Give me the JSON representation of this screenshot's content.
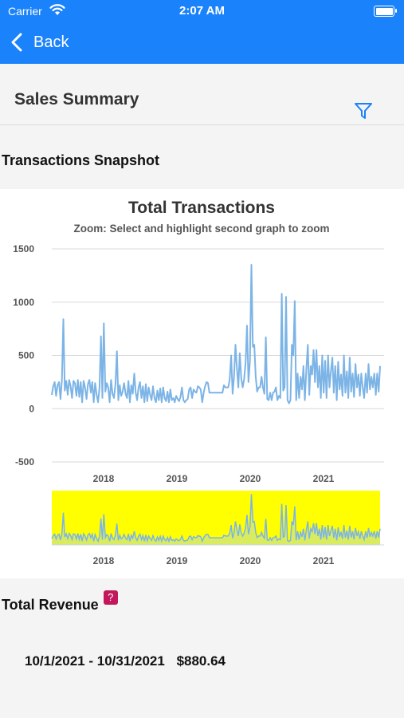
{
  "status_bar": {
    "carrier": "Carrier",
    "time": "2:07 AM"
  },
  "nav": {
    "back_label": "Back"
  },
  "header": {
    "title": "Sales Summary"
  },
  "sections": {
    "snapshot_title": "Transactions Snapshot",
    "revenue_title": "Total Revenue"
  },
  "chart_data": {
    "type": "line",
    "title": "Total Transactions",
    "subtitle": "Zoom: Select and highlight second graph to zoom",
    "ylabel": "",
    "xlabel": "",
    "ylim": [
      -500,
      1500
    ],
    "yticks": [
      1500,
      1000,
      500,
      0,
      -500
    ],
    "xticks": [
      "2018",
      "2019",
      "2020",
      "2021"
    ],
    "grid": true,
    "series_color": "#7cb4e6",
    "navigator_color": "#ffff00",
    "series": [
      {
        "values": [
          130,
          210,
          250,
          120,
          220,
          250,
          90,
          270,
          840,
          170,
          260,
          130,
          270,
          210,
          100,
          260,
          240,
          120,
          270,
          110,
          250,
          60,
          260,
          200,
          90,
          230,
          270,
          150,
          250,
          60,
          240,
          130,
          60,
          200,
          680,
          100,
          800,
          160,
          240,
          200,
          60,
          270,
          140,
          100,
          230,
          540,
          80,
          220,
          120,
          160,
          240,
          140,
          100,
          260,
          60,
          220,
          140,
          330,
          150,
          80,
          200,
          250,
          100,
          210,
          60,
          230,
          70,
          200,
          130,
          80,
          210,
          100,
          60,
          170,
          80,
          190,
          60,
          200,
          100,
          70,
          160,
          60,
          180,
          80,
          100,
          60,
          120,
          90,
          70,
          110,
          200,
          80,
          60,
          80,
          90,
          180,
          200,
          100,
          180,
          160,
          150,
          210,
          200,
          180,
          60,
          150,
          210,
          250,
          240,
          150,
          150,
          150,
          150,
          150,
          150,
          150,
          150,
          150,
          150,
          220,
          200,
          200,
          200,
          270,
          500,
          140,
          300,
          600,
          380,
          200,
          520,
          280,
          200,
          280,
          430,
          780,
          250,
          450,
          1350,
          580,
          600,
          300,
          160,
          200,
          200,
          300,
          200,
          140,
          670,
          90,
          80,
          150,
          80,
          150,
          160,
          200,
          80,
          120,
          100,
          1080,
          170,
          200,
          1050,
          80,
          50,
          80,
          600,
          500,
          1010,
          80,
          330,
          100,
          300,
          180,
          400,
          80,
          360,
          600,
          130,
          400,
          320,
          550,
          250,
          550,
          200,
          400,
          100,
          500,
          150,
          450,
          100,
          500,
          200,
          350,
          480,
          150,
          400,
          80,
          440,
          180,
          320,
          120,
          500,
          150,
          350,
          100,
          480,
          160,
          330,
          110,
          420,
          200,
          320,
          120,
          330,
          200,
          100,
          330,
          150,
          420,
          180,
          300,
          200,
          330,
          130,
          330,
          160,
          400
        ]
      }
    ]
  },
  "revenue": {
    "date_range": "10/1/2021 - 10/31/2021",
    "amount": "$880.64"
  }
}
